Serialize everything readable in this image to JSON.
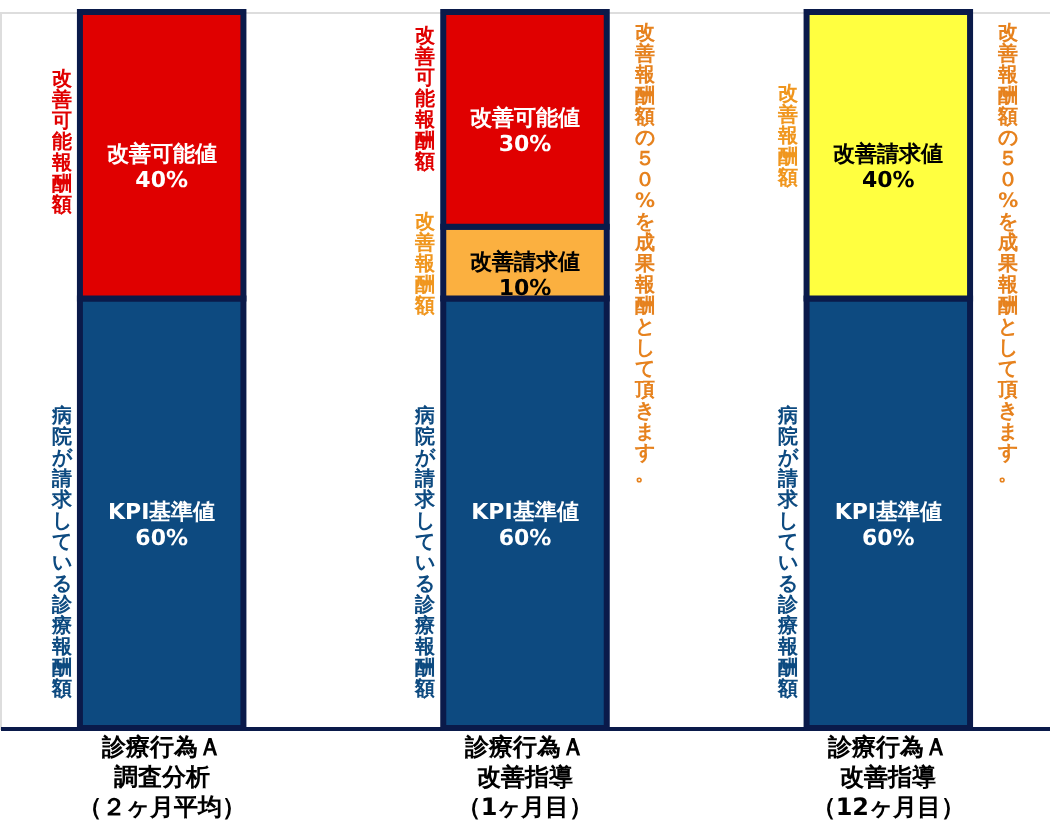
{
  "chart_data": {
    "type": "bar",
    "stacked": true,
    "categories": [
      "診療行為Ａ調査分析（２ヶ月平均）",
      "診療行為Ａ改善指導（1ヶ月目）",
      "診療行為Ａ改善指導（12ヶ月目）"
    ],
    "series": [
      {
        "name": "KPI基準値",
        "color": "#0d4a80",
        "values": [
          60,
          60,
          60
        ],
        "value_labels": [
          "60%",
          "60%",
          "60%"
        ]
      },
      {
        "name": "改善請求値",
        "colors": [
          "#fbb040",
          "#fbb040",
          "#ffff40"
        ],
        "values": [
          null,
          10,
          40
        ],
        "value_labels": [
          null,
          "10%",
          "40%"
        ]
      },
      {
        "name": "改善可能値",
        "color": "#e00000",
        "values": [
          40,
          30,
          null
        ],
        "value_labels": [
          "40%",
          "30%",
          null
        ]
      }
    ],
    "ylim": [
      0,
      100
    ],
    "annotations": [
      "改善可能報酬額",
      "病院が請求している診療報酬額",
      "改善可能報酬額",
      "改善報酬額",
      "病院が請求している診療報酬額",
      "改善報酬額",
      "病院が請求している診療報酬額",
      "改善報酬額の５０%を成果報酬として頂きます。",
      "改善報酬額の５０%を成果報酬として頂きます。"
    ]
  }
}
